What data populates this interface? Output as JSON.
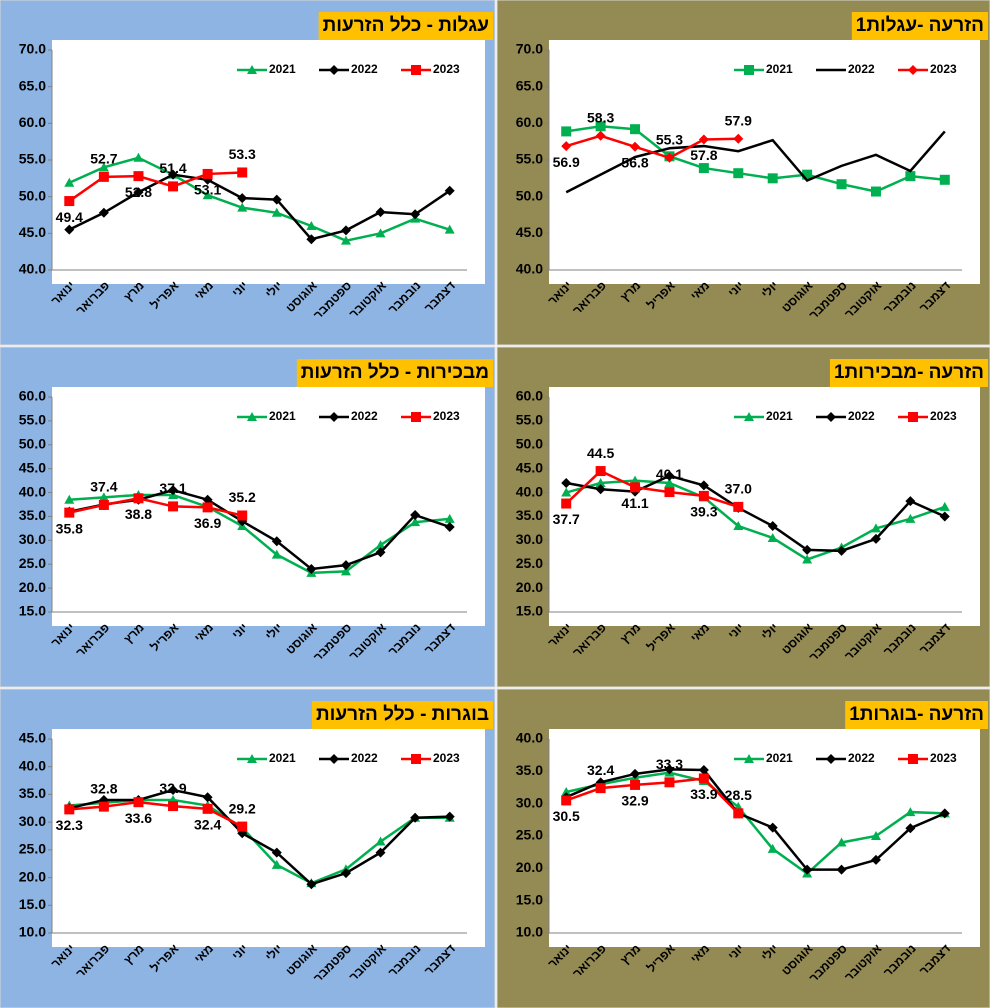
{
  "chart_data": [
    {
      "type": "line",
      "title": "עגלות - כלל הזרעות",
      "categories": [
        "ינואר",
        "פברואר",
        "מרץ",
        "אפריל",
        "מאי",
        "יוני",
        "יולי",
        "אוגוסט",
        "ספטמבר",
        "אוקטובר",
        "נובמבר",
        "דצמבר"
      ],
      "series": [
        {
          "name": "2021",
          "color": "#00B050",
          "marker": "triangle",
          "values": [
            51.9,
            54.0,
            55.3,
            53.0,
            50.2,
            48.5,
            47.8,
            46.0,
            44.0,
            45.0,
            47.0,
            45.5
          ]
        },
        {
          "name": "2022",
          "color": "#000000",
          "marker": "diamond",
          "values": [
            45.5,
            47.8,
            50.6,
            53.0,
            52.3,
            49.8,
            49.6,
            44.2,
            45.4,
            47.9,
            47.6,
            50.8
          ]
        },
        {
          "name": "2023",
          "color": "#FF0000",
          "marker": "square",
          "values": [
            49.4,
            52.7,
            52.8,
            51.4,
            53.1,
            53.3,
            null,
            null,
            null,
            null,
            null,
            null
          ],
          "value_labels": [
            "49.4",
            "52.7",
            "52.8",
            "51.4",
            "53.1",
            "53.3",
            null,
            null,
            null,
            null,
            null,
            null
          ]
        }
      ],
      "ylim": [
        40,
        70
      ],
      "yticks": [
        {
          "value": 40,
          "label": "40.0"
        },
        {
          "value": 45,
          "label": "45.0"
        },
        {
          "value": 50,
          "label": "50.0"
        },
        {
          "value": 55,
          "label": "55.0"
        },
        {
          "value": 60,
          "label": "60.0"
        },
        {
          "value": 65,
          "label": "65.0"
        },
        {
          "value": 70,
          "label": "70.0"
        }
      ]
    },
    {
      "type": "line",
      "title": "1הזרעה -עגלות",
      "categories": [
        "ינואר",
        "פברואר",
        "מרץ",
        "אפריל",
        "מאי",
        "יוני",
        "יולי",
        "אוגוסט",
        "ספטמבר",
        "אוקטובר",
        "נובמבר",
        "דצמבר"
      ],
      "series": [
        {
          "name": "2021",
          "color": "#00B050",
          "marker": "square",
          "values": [
            58.9,
            59.6,
            59.2,
            55.5,
            53.9,
            53.2,
            52.5,
            53.0,
            51.7,
            50.7,
            52.8,
            52.3
          ]
        },
        {
          "name": "2022",
          "color": "#000000",
          "marker": "none",
          "values": [
            50.6,
            53.0,
            55.4,
            56.6,
            56.9,
            56.2,
            57.7,
            52.2,
            54.2,
            55.7,
            53.5,
            58.9
          ]
        },
        {
          "name": "2023",
          "color": "#FF0000",
          "marker": "diamond",
          "values": [
            56.9,
            58.3,
            56.8,
            55.3,
            57.8,
            57.9,
            null,
            null,
            null,
            null,
            null,
            null
          ],
          "value_labels": [
            "56.9",
            "58.3",
            "56.8",
            "55.3",
            "57.8",
            "57.9",
            null,
            null,
            null,
            null,
            null,
            null
          ]
        }
      ],
      "ylim": [
        40,
        70
      ],
      "yticks": [
        {
          "value": 40,
          "label": "40.0"
        },
        {
          "value": 45,
          "label": "45.0"
        },
        {
          "value": 50,
          "label": "50.0"
        },
        {
          "value": 55,
          "label": "55.0"
        },
        {
          "value": 60,
          "label": "60.0"
        },
        {
          "value": 65,
          "label": "65.0"
        },
        {
          "value": 70,
          "label": "70.0"
        }
      ]
    },
    {
      "type": "line",
      "title": "מבכירות - כלל הזרעות",
      "categories": [
        "ינואר",
        "פברואר",
        "מרץ",
        "אפריל",
        "מאי",
        "יוני",
        "יולי",
        "אוגוסט",
        "ספטמבר",
        "אוקטובר",
        "נובמבר",
        "דצמבר"
      ],
      "series": [
        {
          "name": "2021",
          "color": "#00B050",
          "marker": "triangle",
          "values": [
            38.5,
            39.0,
            39.5,
            39.5,
            37.0,
            33.0,
            27.0,
            23.2,
            23.5,
            29.0,
            33.8,
            34.5
          ]
        },
        {
          "name": "2022",
          "color": "#000000",
          "marker": "diamond",
          "values": [
            36.0,
            37.5,
            38.5,
            40.5,
            38.5,
            34.0,
            29.8,
            24.0,
            24.8,
            27.5,
            35.3,
            32.8
          ]
        },
        {
          "name": "2023",
          "color": "#FF0000",
          "marker": "square",
          "values": [
            35.8,
            37.4,
            38.8,
            37.1,
            36.9,
            35.2,
            null,
            null,
            null,
            null,
            null,
            null
          ],
          "value_labels": [
            "35.8",
            "37.4",
            "38.8",
            "37.1",
            "36.9",
            "35.2",
            null,
            null,
            null,
            null,
            null,
            null
          ]
        }
      ],
      "ylim": [
        15,
        60
      ],
      "yticks": [
        {
          "value": 15,
          "label": "15.0"
        },
        {
          "value": 20,
          "label": "20.0"
        },
        {
          "value": 25,
          "label": "25.0"
        },
        {
          "value": 30,
          "label": "30.0"
        },
        {
          "value": 35,
          "label": "35.0"
        },
        {
          "value": 40,
          "label": "40.0"
        },
        {
          "value": 45,
          "label": "45.0"
        },
        {
          "value": 50,
          "label": "50.0"
        },
        {
          "value": 55,
          "label": "55.0"
        },
        {
          "value": 60,
          "label": "60.0"
        }
      ]
    },
    {
      "type": "line",
      "title": "1הזרעה -מבכירות",
      "categories": [
        "ינואר",
        "פברואר",
        "מרץ",
        "אפריל",
        "מאי",
        "יוני",
        "יולי",
        "אוגוסט",
        "ספטמבר",
        "אוקטובר",
        "נובמבר",
        "דצמבר"
      ],
      "series": [
        {
          "name": "2021",
          "color": "#00B050",
          "marker": "triangle",
          "values": [
            40.0,
            42.0,
            42.5,
            42.0,
            39.0,
            33.0,
            30.5,
            26.0,
            28.5,
            32.5,
            34.5,
            37.0
          ]
        },
        {
          "name": "2022",
          "color": "#000000",
          "marker": "diamond",
          "values": [
            42.0,
            40.7,
            40.2,
            43.5,
            41.5,
            36.8,
            33.0,
            28.0,
            27.8,
            30.3,
            38.2,
            35.0
          ]
        },
        {
          "name": "2023",
          "color": "#FF0000",
          "marker": "square",
          "values": [
            37.7,
            44.5,
            41.1,
            40.1,
            39.3,
            37.0,
            null,
            null,
            null,
            null,
            null,
            null
          ],
          "value_labels": [
            "37.7",
            "44.5",
            "41.1",
            "40.1",
            "39.3",
            "37.0",
            null,
            null,
            null,
            null,
            null,
            null
          ]
        }
      ],
      "ylim": [
        15,
        60
      ],
      "yticks": [
        {
          "value": 15,
          "label": "15.0"
        },
        {
          "value": 20,
          "label": "20.0"
        },
        {
          "value": 25,
          "label": "25.0"
        },
        {
          "value": 30,
          "label": "30.0"
        },
        {
          "value": 35,
          "label": "35.0"
        },
        {
          "value": 40,
          "label": "40.0"
        },
        {
          "value": 45,
          "label": "45.0"
        },
        {
          "value": 50,
          "label": "50.0"
        },
        {
          "value": 55,
          "label": "55.0"
        },
        {
          "value": 60,
          "label": "60.0"
        }
      ]
    },
    {
      "type": "line",
      "title": "בוגרות - כלל הזרעות",
      "categories": [
        "ינואר",
        "פברואר",
        "מרץ",
        "אפריל",
        "מאי",
        "יוני",
        "יולי",
        "אוגוסט",
        "ספטמבר",
        "אוקטובר",
        "נובמבר",
        "דצמבר"
      ],
      "series": [
        {
          "name": "2021",
          "color": "#00B050",
          "marker": "triangle",
          "values": [
            33.0,
            33.5,
            34.0,
            34.0,
            33.0,
            29.0,
            22.3,
            19.0,
            21.5,
            26.5,
            30.8,
            30.8
          ]
        },
        {
          "name": "2022",
          "color": "#000000",
          "marker": "diamond",
          "values": [
            32.5,
            34.0,
            34.0,
            35.8,
            34.5,
            28.0,
            24.5,
            18.8,
            20.8,
            24.5,
            30.8,
            31.0
          ]
        },
        {
          "name": "2023",
          "color": "#FF0000",
          "marker": "square",
          "values": [
            32.3,
            32.8,
            33.6,
            32.9,
            32.4,
            29.2,
            null,
            null,
            null,
            null,
            null,
            null
          ],
          "value_labels": [
            "32.3",
            "32.8",
            "33.6",
            "32.9",
            "32.4",
            "29.2",
            null,
            null,
            null,
            null,
            null,
            null
          ]
        }
      ],
      "ylim": [
        10,
        45
      ],
      "yticks": [
        {
          "value": 10,
          "label": "10.0"
        },
        {
          "value": 15,
          "label": "15.0"
        },
        {
          "value": 20,
          "label": "20.0"
        },
        {
          "value": 25,
          "label": "25.0"
        },
        {
          "value": 30,
          "label": "30.0"
        },
        {
          "value": 35,
          "label": "35.0"
        },
        {
          "value": 40,
          "label": "40.0"
        },
        {
          "value": 45,
          "label": "45.0"
        }
      ]
    },
    {
      "type": "line",
      "title": "1הזרעה -בוגרות",
      "categories": [
        "ינואר",
        "פברואר",
        "מרץ",
        "אפריל",
        "מאי",
        "יוני",
        "יולי",
        "אוגוסט",
        "ספטמבר",
        "אוקטובר",
        "נובמבר",
        "דצמבר"
      ],
      "series": [
        {
          "name": "2021",
          "color": "#00B050",
          "marker": "triangle",
          "values": [
            31.8,
            33.0,
            34.0,
            34.8,
            33.5,
            29.5,
            23.0,
            19.2,
            24.0,
            25.0,
            28.7,
            28.5
          ]
        },
        {
          "name": "2022",
          "color": "#000000",
          "marker": "diamond",
          "values": [
            31.0,
            33.3,
            34.6,
            35.3,
            35.2,
            28.5,
            26.3,
            19.8,
            19.8,
            21.3,
            26.2,
            28.5
          ]
        },
        {
          "name": "2023",
          "color": "#FF0000",
          "marker": "square",
          "values": [
            30.5,
            32.4,
            32.9,
            33.3,
            33.9,
            28.5,
            null,
            null,
            null,
            null,
            null,
            null
          ],
          "value_labels": [
            "30.5",
            "32.4",
            "32.9",
            "33.3",
            "33.9",
            "28.5",
            null,
            null,
            null,
            null,
            null,
            null
          ]
        }
      ],
      "ylim": [
        10,
        40
      ],
      "yticks": [
        {
          "value": 10,
          "label": "10.0"
        },
        {
          "value": 15,
          "label": "15.0"
        },
        {
          "value": 20,
          "label": "20.0"
        },
        {
          "value": 25,
          "label": "25.0"
        },
        {
          "value": 30,
          "label": "30.0"
        },
        {
          "value": 35,
          "label": "35.0"
        },
        {
          "value": 40,
          "label": "40.0"
        }
      ]
    }
  ]
}
